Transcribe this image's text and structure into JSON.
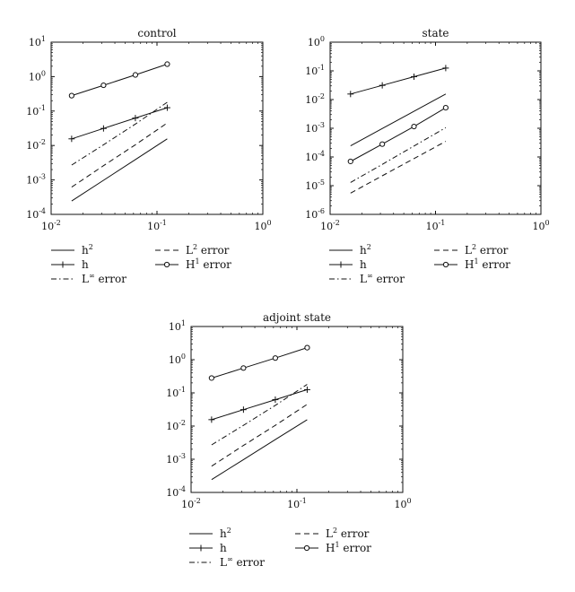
{
  "chart_data": [
    {
      "type": "line",
      "title": "control",
      "xlabel": "",
      "ylabel": "",
      "xscale": "log",
      "yscale": "log",
      "xlim": [
        0.01,
        1
      ],
      "ylim": [
        0.0001,
        10
      ],
      "x_ticks": [
        0.01,
        0.1,
        1
      ],
      "x_tick_labels": [
        [
          "10",
          "-2"
        ],
        [
          "10",
          "-1"
        ],
        [
          "10",
          "0"
        ]
      ],
      "y_ticks": [
        0.0001,
        0.001,
        0.01,
        0.1,
        1,
        10
      ],
      "y_tick_labels": [
        [
          "10",
          "-4"
        ],
        [
          "10",
          "-3"
        ],
        [
          "10",
          "-2"
        ],
        [
          "10",
          "-1"
        ],
        [
          "10",
          "0"
        ],
        [
          "10",
          "1"
        ]
      ],
      "grid": false,
      "x": [
        0.015625,
        0.03125,
        0.0625,
        0.125
      ],
      "series": [
        {
          "name": "h^2",
          "style": "solid",
          "marker": "none",
          "values": [
            0.000244,
            0.000977,
            0.0039,
            0.0156
          ]
        },
        {
          "name": "h",
          "style": "solid",
          "marker": "plus",
          "values": [
            0.0156,
            0.03125,
            0.0625,
            0.125
          ]
        },
        {
          "name": "L^inf error",
          "style": "dashdot",
          "marker": "none",
          "values": [
            0.0027,
            0.0105,
            0.042,
            0.18
          ]
        },
        {
          "name": "L^2 error",
          "style": "dashed",
          "marker": "none",
          "values": [
            0.00062,
            0.0026,
            0.0105,
            0.045
          ]
        },
        {
          "name": "H^1 error",
          "style": "solid",
          "marker": "circle",
          "values": [
            0.28,
            0.56,
            1.12,
            2.3
          ]
        }
      ]
    },
    {
      "type": "line",
      "title": "state",
      "xlabel": "",
      "ylabel": "",
      "xscale": "log",
      "yscale": "log",
      "xlim": [
        0.01,
        1
      ],
      "ylim": [
        1e-06,
        1
      ],
      "x_ticks": [
        0.01,
        0.1,
        1
      ],
      "x_tick_labels": [
        [
          "10",
          "-2"
        ],
        [
          "10",
          "-1"
        ],
        [
          "10",
          "0"
        ]
      ],
      "y_ticks": [
        1e-06,
        1e-05,
        0.0001,
        0.001,
        0.01,
        0.1,
        1
      ],
      "y_tick_labels": [
        [
          "10",
          "-6"
        ],
        [
          "10",
          "-5"
        ],
        [
          "10",
          "-4"
        ],
        [
          "10",
          "-3"
        ],
        [
          "10",
          "-2"
        ],
        [
          "10",
          "-1"
        ],
        [
          "10",
          "0"
        ]
      ],
      "grid": false,
      "x": [
        0.015625,
        0.03125,
        0.0625,
        0.125
      ],
      "series": [
        {
          "name": "h^2",
          "style": "solid",
          "marker": "none",
          "values": [
            0.000244,
            0.000977,
            0.0039,
            0.0156
          ]
        },
        {
          "name": "h",
          "style": "solid",
          "marker": "plus",
          "values": [
            0.0156,
            0.03125,
            0.0625,
            0.125
          ]
        },
        {
          "name": "L^inf error",
          "style": "dashdot",
          "marker": "none",
          "values": [
            1.3e-05,
            5.5e-05,
            0.00024,
            0.00105
          ]
        },
        {
          "name": "L^2 error",
          "style": "dashed",
          "marker": "none",
          "values": [
            5.5e-06,
            2.2e-05,
            8.8e-05,
            0.00035
          ]
        },
        {
          "name": "H^1 error",
          "style": "solid",
          "marker": "circle",
          "values": [
            7e-05,
            0.00028,
            0.00115,
            0.0052
          ]
        }
      ]
    },
    {
      "type": "line",
      "title": "adjoint state",
      "xlabel": "",
      "ylabel": "",
      "xscale": "log",
      "yscale": "log",
      "xlim": [
        0.01,
        1
      ],
      "ylim": [
        0.0001,
        10
      ],
      "x_ticks": [
        0.01,
        0.1,
        1
      ],
      "x_tick_labels": [
        [
          "10",
          "-2"
        ],
        [
          "10",
          "-1"
        ],
        [
          "10",
          "0"
        ]
      ],
      "y_ticks": [
        0.0001,
        0.001,
        0.01,
        0.1,
        1,
        10
      ],
      "y_tick_labels": [
        [
          "10",
          "-4"
        ],
        [
          "10",
          "-3"
        ],
        [
          "10",
          "-2"
        ],
        [
          "10",
          "-1"
        ],
        [
          "10",
          "0"
        ],
        [
          "10",
          "1"
        ]
      ],
      "grid": false,
      "x": [
        0.015625,
        0.03125,
        0.0625,
        0.125
      ],
      "series": [
        {
          "name": "h^2",
          "style": "solid",
          "marker": "none",
          "values": [
            0.000244,
            0.000977,
            0.0039,
            0.0156
          ]
        },
        {
          "name": "h",
          "style": "solid",
          "marker": "plus",
          "values": [
            0.0156,
            0.03125,
            0.0625,
            0.125
          ]
        },
        {
          "name": "L^inf error",
          "style": "dashdot",
          "marker": "none",
          "values": [
            0.0027,
            0.0105,
            0.042,
            0.18
          ]
        },
        {
          "name": "L^2 error",
          "style": "dashed",
          "marker": "none",
          "values": [
            0.00062,
            0.0026,
            0.0105,
            0.045
          ]
        },
        {
          "name": "H^1 error",
          "style": "solid",
          "marker": "circle",
          "values": [
            0.28,
            0.56,
            1.12,
            2.3
          ]
        }
      ]
    }
  ],
  "legend": {
    "entries": [
      {
        "key": "h2",
        "base": "h",
        "sup": "2",
        "suffix": "",
        "style": "solid",
        "marker": "none"
      },
      {
        "key": "l2",
        "base": "L",
        "sup": "2",
        "suffix": " error",
        "style": "dashed",
        "marker": "none"
      },
      {
        "key": "h",
        "base": "h",
        "sup": "",
        "suffix": "",
        "style": "solid",
        "marker": "plus"
      },
      {
        "key": "h1",
        "base": "H",
        "sup": "1",
        "suffix": " error",
        "style": "solid",
        "marker": "circle"
      },
      {
        "key": "linf",
        "base": "L",
        "sup": "∞",
        "suffix": " error",
        "style": "dashdot",
        "marker": "none"
      }
    ]
  },
  "colors": {
    "line": "#111111",
    "background": "#ffffff"
  }
}
